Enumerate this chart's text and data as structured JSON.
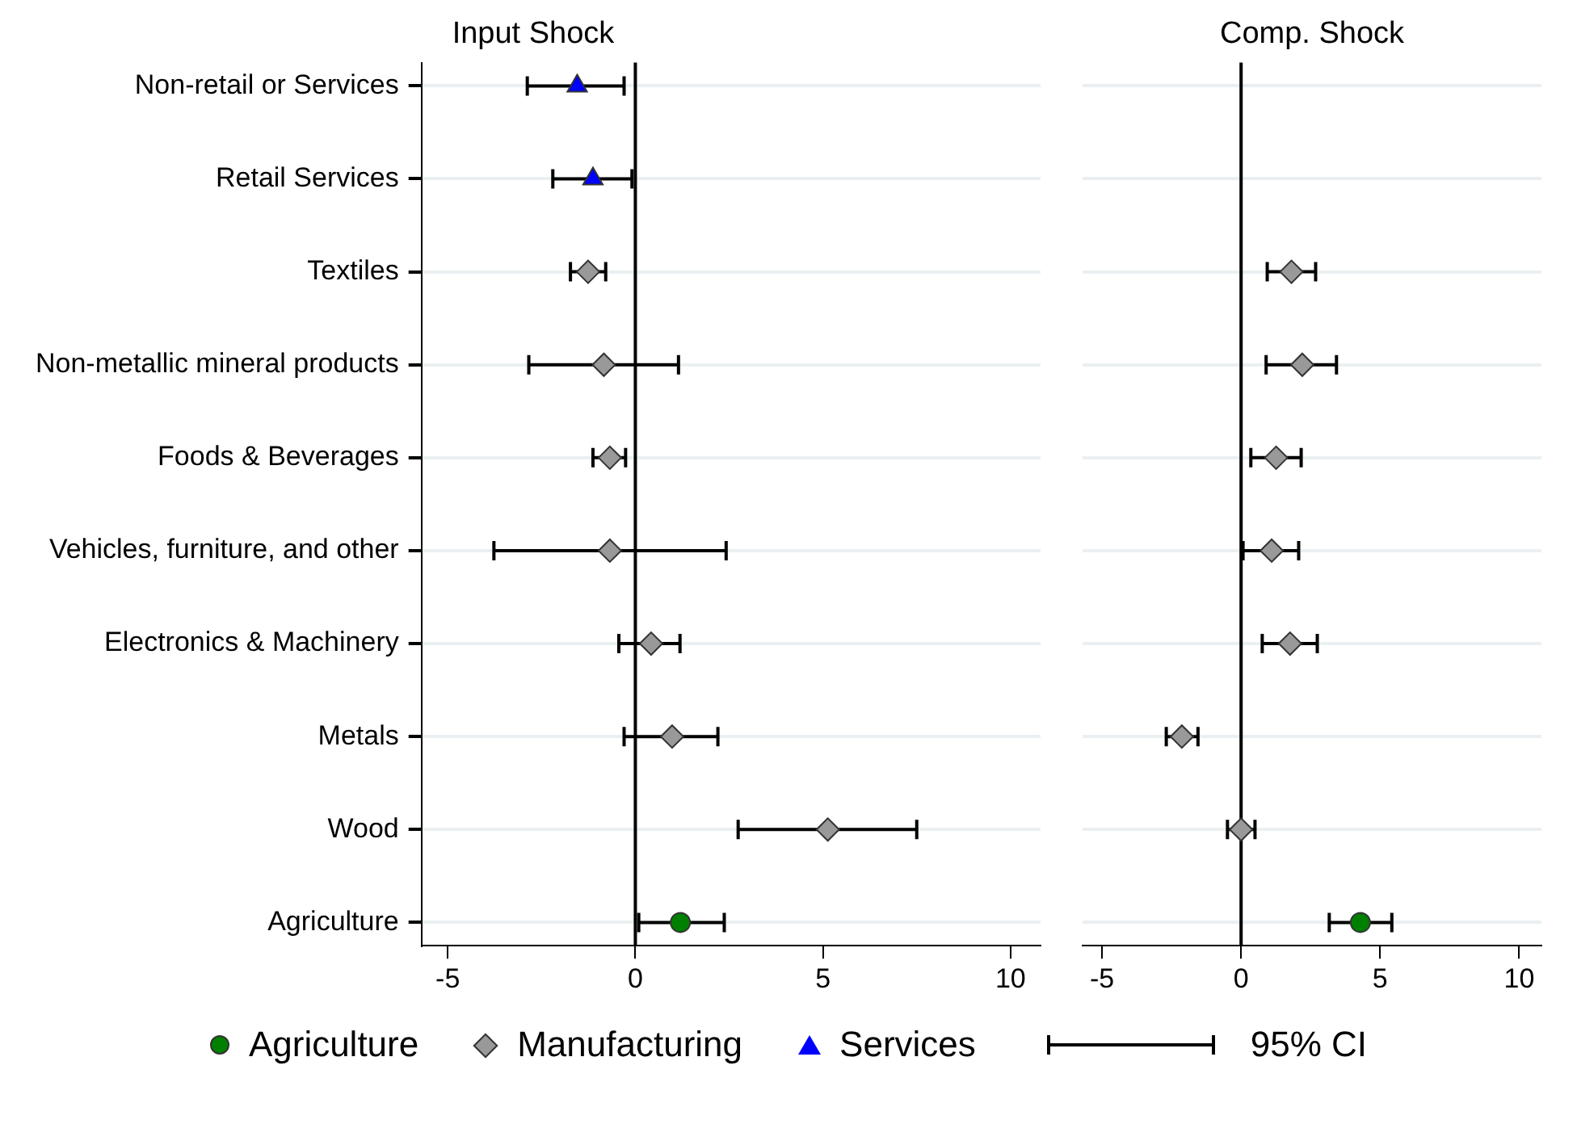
{
  "chart_data": [
    {
      "type": "scatter",
      "orientation": "horizontal",
      "title": "Input Shock",
      "categories": [
        "Non-retail or Services",
        "Retail Services",
        "Textiles",
        "Non-metallic mineral products",
        "Foods & Beverages",
        "Vehicles, furniture, and other",
        "Electronics & Machinery",
        "Metals",
        "Wood",
        "Agriculture"
      ],
      "series": [
        {
          "name": "Agriculture",
          "color": "#008000",
          "marker": "circle",
          "values": [
            null,
            null,
            null,
            null,
            null,
            null,
            null,
            null,
            null,
            1.2
          ],
          "errors": [
            null,
            null,
            null,
            null,
            null,
            null,
            null,
            null,
            null,
            [
              0.09,
              2.37
            ]
          ]
        },
        {
          "name": "Manufacturing",
          "color": "#999999",
          "marker": "diamond",
          "values": [
            null,
            null,
            -1.26,
            -0.84,
            -0.68,
            -0.68,
            0.42,
            0.98,
            5.13,
            null
          ],
          "errors": [
            null,
            null,
            [
              -1.73,
              -0.79
            ],
            [
              -2.84,
              1.15
            ],
            [
              -1.13,
              -0.26
            ],
            [
              -3.77,
              2.42
            ],
            [
              -0.44,
              1.19
            ],
            [
              -0.3,
              2.2
            ],
            [
              2.74,
              7.5
            ],
            null
          ]
        },
        {
          "name": "Services",
          "color": "#0000ff",
          "marker": "triangle",
          "values": [
            -1.55,
            -1.13,
            null,
            null,
            null,
            null,
            null,
            null,
            null,
            null
          ],
          "errors": [
            [
              -2.88,
              -0.3
            ],
            [
              -2.2,
              -0.09
            ],
            null,
            null,
            null,
            null,
            null,
            null,
            null,
            null
          ]
        }
      ],
      "xlim": [
        -5.7,
        10.8
      ],
      "xticks": [
        -5,
        0,
        5,
        10
      ],
      "grid": "y",
      "legend": "bottom",
      "ref_lines": [
        {
          "axis": "x",
          "value": 0,
          "color": "#000000"
        }
      ],
      "annotations": [
        "95% CI"
      ]
    },
    {
      "type": "scatter",
      "orientation": "horizontal",
      "title": "Comp. Shock",
      "categories": [
        null,
        null,
        null,
        null,
        null,
        null,
        null,
        null,
        null,
        null
      ],
      "series": [
        {
          "color": "#008000",
          "marker": "circle",
          "values": [
            null,
            null,
            null,
            null,
            null,
            null,
            null,
            null,
            null,
            4.29
          ],
          "errors": [
            null,
            null,
            null,
            null,
            null,
            null,
            null,
            null,
            null,
            [
              3.17,
              5.42
            ]
          ]
        },
        {
          "color": "#999999",
          "marker": "diamond",
          "values": [
            null,
            null,
            1.81,
            2.2,
            1.26,
            1.1,
            1.76,
            -2.13,
            0.0,
            null
          ],
          "errors": [
            null,
            null,
            [
              0.94,
              2.68
            ],
            [
              0.9,
              3.43
            ],
            [
              0.35,
              2.16
            ],
            [
              0.07,
              2.07
            ],
            [
              0.76,
              2.74
            ],
            [
              -2.69,
              -1.55
            ],
            [
              -0.49,
              0.5
            ],
            null
          ]
        }
      ],
      "xlim": [
        -5.7,
        10.8
      ],
      "xticks": [
        -5,
        0,
        5,
        10
      ],
      "grid": "y",
      "tick_labels": "x",
      "ref_lines": [
        {
          "axis": "x",
          "value": 0,
          "color": "#000000"
        }
      ]
    }
  ]
}
